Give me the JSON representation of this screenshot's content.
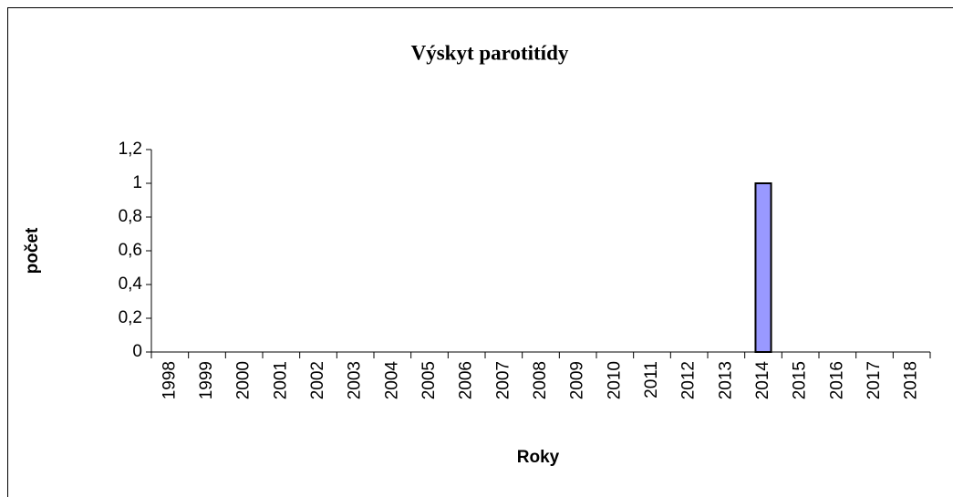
{
  "chart_data": {
    "type": "bar",
    "title": "Výskyt parotitídy",
    "x_label": "Roky",
    "y_label": "počet",
    "categories": [
      "1998",
      "1999",
      "2000",
      "2001",
      "2002",
      "2003",
      "2004",
      "2005",
      "2006",
      "2007",
      "2008",
      "2009",
      "2010",
      "2011",
      "2012",
      "2013",
      "2014",
      "2015",
      "2016",
      "2017",
      "2018"
    ],
    "values": [
      0,
      0,
      0,
      0,
      0,
      0,
      0,
      0,
      0,
      0,
      0,
      0,
      0,
      0,
      0,
      0,
      1,
      0,
      0,
      0,
      0
    ],
    "color": "#9999ff",
    "ylim": [
      0,
      1.2
    ],
    "yticks": [
      0,
      {
        "value": 0.2,
        "label": "0,2"
      },
      {
        "value": 0.4,
        "label": "0,4"
      },
      {
        "value": 0.6,
        "label": "0,6"
      },
      {
        "value": 0.8,
        "label": "0,8"
      },
      1,
      {
        "value": 1.2,
        "label": "1,2"
      }
    ],
    "grid": false
  }
}
